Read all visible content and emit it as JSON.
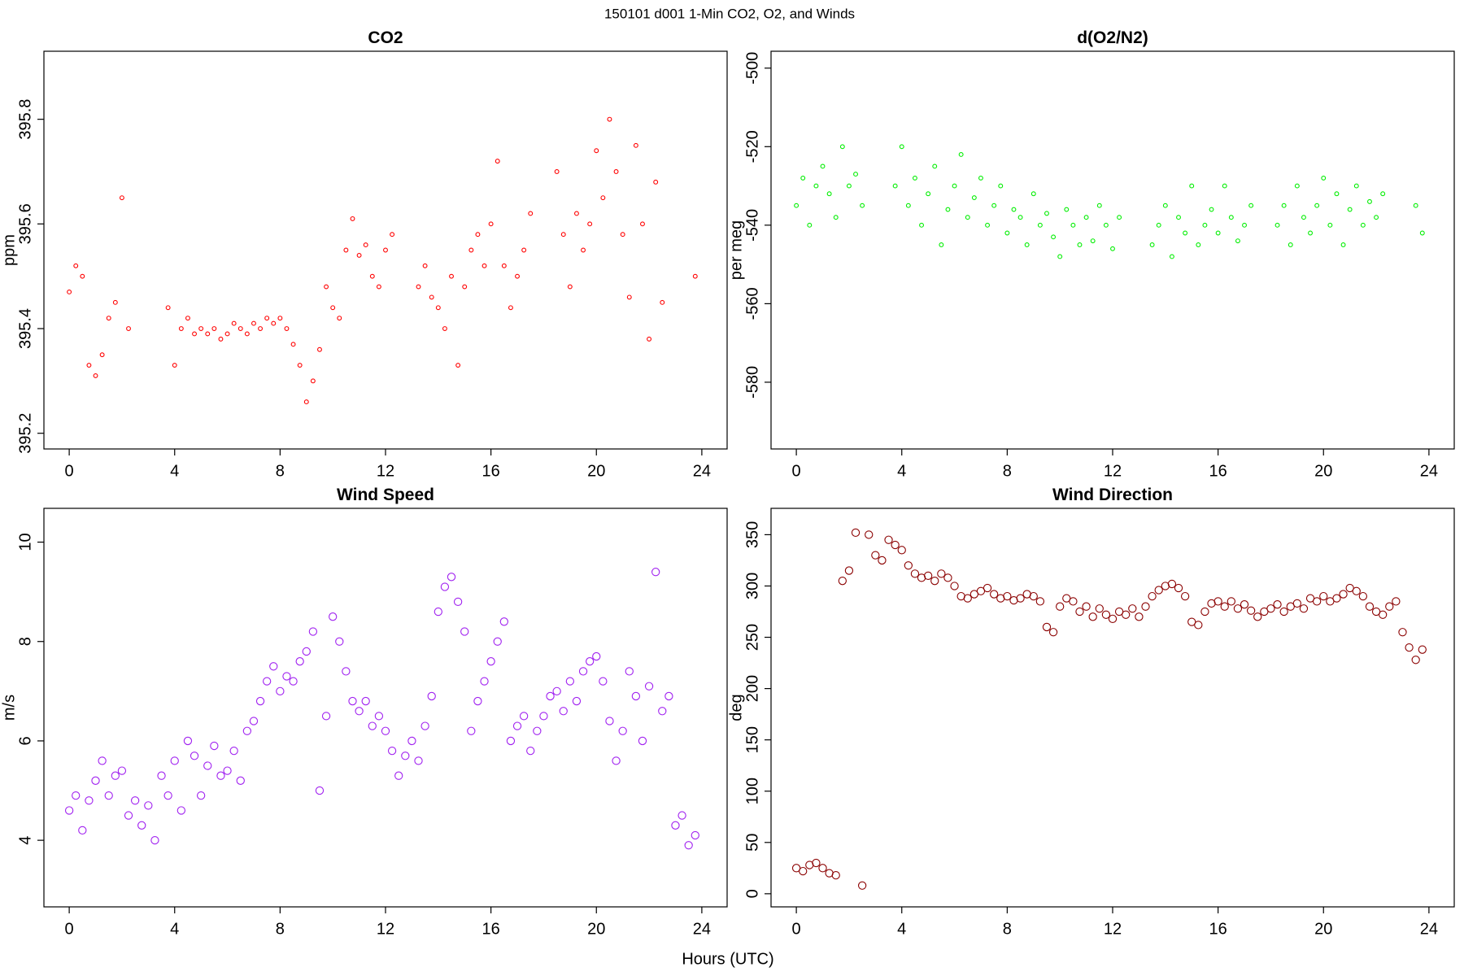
{
  "title": "150101   d001   1-Min CO2, O2, and Winds",
  "xlabel": "Hours (UTC)",
  "chart_data": [
    {
      "type": "scatter",
      "title": "CO2",
      "ylabel": "ppm",
      "color": "#ff0000",
      "xlim": [
        -0.96,
        24.96
      ],
      "xticks": [
        0,
        4,
        8,
        12,
        16,
        20,
        24
      ],
      "ylim": [
        395.17,
        395.93
      ],
      "yticks": [
        395.2,
        395.4,
        395.6,
        395.8
      ],
      "x": [
        0,
        0.25,
        0.5,
        0.75,
        1,
        1.25,
        1.5,
        1.75,
        2,
        2.25,
        2.5,
        2.75,
        3,
        3.25,
        3.5,
        3.75,
        4,
        4.25,
        4.5,
        4.75,
        5,
        5.25,
        5.5,
        5.75,
        6,
        6.25,
        6.5,
        6.75,
        7,
        7.25,
        7.5,
        7.75,
        8,
        8.25,
        8.5,
        8.75,
        9,
        9.25,
        9.5,
        9.75,
        10,
        10.25,
        10.5,
        10.75,
        11,
        11.25,
        11.5,
        11.75,
        12,
        12.25,
        12.5,
        12.75,
        13,
        13.25,
        13.5,
        13.75,
        14,
        14.25,
        14.5,
        14.75,
        15,
        15.25,
        15.5,
        15.75,
        16,
        16.25,
        16.5,
        16.75,
        17,
        17.25,
        17.5,
        17.75,
        18,
        18.25,
        18.5,
        18.75,
        19,
        19.25,
        19.5,
        19.75,
        20,
        20.25,
        20.5,
        20.75,
        21,
        21.25,
        21.5,
        21.75,
        22,
        22.25,
        22.5,
        22.75,
        23,
        23.25,
        23.5,
        23.75
      ],
      "values": [
        395.47,
        395.52,
        395.5,
        395.33,
        395.31,
        395.35,
        395.42,
        395.45,
        395.65,
        395.4,
        null,
        null,
        null,
        null,
        null,
        395.44,
        395.33,
        395.4,
        395.42,
        395.39,
        395.4,
        395.39,
        395.4,
        395.38,
        395.39,
        395.41,
        395.4,
        395.39,
        395.41,
        395.4,
        395.42,
        395.41,
        395.42,
        395.4,
        395.37,
        395.33,
        395.26,
        395.3,
        395.36,
        395.48,
        395.44,
        395.42,
        395.55,
        395.61,
        395.54,
        395.56,
        395.5,
        395.48,
        395.55,
        395.58,
        null,
        null,
        null,
        395.48,
        395.52,
        395.46,
        395.44,
        395.4,
        395.5,
        395.33,
        395.48,
        395.55,
        395.58,
        395.52,
        395.6,
        395.72,
        395.52,
        395.44,
        395.5,
        395.55,
        395.62,
        null,
        null,
        null,
        395.7,
        395.58,
        395.48,
        395.62,
        395.55,
        395.6,
        395.74,
        395.65,
        395.8,
        395.7,
        395.58,
        395.46,
        395.75,
        395.6,
        395.38,
        395.68,
        395.45,
        null,
        null,
        null,
        null,
        395.5
      ]
    },
    {
      "type": "scatter",
      "title": "d(O2/N2)",
      "ylabel": "per meg",
      "color": "#00ee00",
      "xlim": [
        -0.96,
        24.96
      ],
      "xticks": [
        0,
        4,
        8,
        12,
        16,
        20,
        24
      ],
      "ylim": [
        -597,
        -495.7
      ],
      "yticks": [
        -580,
        -560,
        -540,
        -520,
        -500
      ],
      "x": [
        0,
        0.25,
        0.5,
        0.75,
        1,
        1.25,
        1.5,
        1.75,
        2,
        2.25,
        2.5,
        2.75,
        3,
        3.25,
        3.5,
        3.75,
        4,
        4.25,
        4.5,
        4.75,
        5,
        5.25,
        5.5,
        5.75,
        6,
        6.25,
        6.5,
        6.75,
        7,
        7.25,
        7.5,
        7.75,
        8,
        8.25,
        8.5,
        8.75,
        9,
        9.25,
        9.5,
        9.75,
        10,
        10.25,
        10.5,
        10.75,
        11,
        11.25,
        11.5,
        11.75,
        12,
        12.25,
        12.5,
        12.75,
        13,
        13.25,
        13.5,
        13.75,
        14,
        14.25,
        14.5,
        14.75,
        15,
        15.25,
        15.5,
        15.75,
        16,
        16.25,
        16.5,
        16.75,
        17,
        17.25,
        17.5,
        17.75,
        18,
        18.25,
        18.5,
        18.75,
        19,
        19.25,
        19.5,
        19.75,
        20,
        20.25,
        20.5,
        20.75,
        21,
        21.25,
        21.5,
        21.75,
        22,
        22.25,
        22.5,
        22.75,
        23,
        23.25,
        23.5,
        23.75
      ],
      "values": [
        -535,
        -528,
        -540,
        -530,
        -525,
        -532,
        -538,
        -520,
        -530,
        -527,
        -535,
        null,
        null,
        null,
        null,
        -530,
        -520,
        -535,
        -528,
        -540,
        -532,
        -525,
        -545,
        -536,
        -530,
        -522,
        -538,
        -533,
        -528,
        -540,
        -535,
        -530,
        -542,
        -536,
        -538,
        -545,
        -532,
        -540,
        -537,
        -543,
        -548,
        -536,
        -540,
        -545,
        -538,
        -544,
        -535,
        -540,
        -546,
        -538,
        null,
        null,
        null,
        null,
        -545,
        -540,
        -535,
        -548,
        -538,
        -542,
        -530,
        -545,
        -540,
        -536,
        -542,
        -530,
        -538,
        -544,
        -540,
        -535,
        null,
        null,
        null,
        -540,
        -535,
        -545,
        -530,
        -538,
        -542,
        -535,
        -528,
        -540,
        -532,
        -545,
        -536,
        -530,
        -540,
        -534,
        -538,
        -532,
        null,
        null,
        null,
        null,
        -535,
        -542
      ]
    },
    {
      "type": "scatter",
      "title": "Wind Speed",
      "ylabel": "m/s",
      "color": "#a020f0",
      "xlim": [
        -0.96,
        24.96
      ],
      "xticks": [
        0,
        4,
        8,
        12,
        16,
        20,
        24
      ],
      "ylim": [
        2.66,
        10.68
      ],
      "yticks": [
        4,
        6,
        8,
        10
      ],
      "x": [
        0,
        0.25,
        0.5,
        0.75,
        1,
        1.25,
        1.5,
        1.75,
        2,
        2.25,
        2.5,
        2.75,
        3,
        3.25,
        3.5,
        3.75,
        4,
        4.25,
        4.5,
        4.75,
        5,
        5.25,
        5.5,
        5.75,
        6,
        6.25,
        6.5,
        6.75,
        7,
        7.25,
        7.5,
        7.75,
        8,
        8.25,
        8.5,
        8.75,
        9,
        9.25,
        9.5,
        9.75,
        10,
        10.25,
        10.5,
        10.75,
        11,
        11.25,
        11.5,
        11.75,
        12,
        12.25,
        12.5,
        12.75,
        13,
        13.25,
        13.5,
        13.75,
        14,
        14.25,
        14.5,
        14.75,
        15,
        15.25,
        15.5,
        15.75,
        16,
        16.25,
        16.5,
        16.75,
        17,
        17.25,
        17.5,
        17.75,
        18,
        18.25,
        18.5,
        18.75,
        19,
        19.25,
        19.5,
        19.75,
        20,
        20.25,
        20.5,
        20.75,
        21,
        21.25,
        21.5,
        21.75,
        22,
        22.25,
        22.5,
        22.75,
        23,
        23.25,
        23.5,
        23.75
      ],
      "values": [
        4.6,
        4.9,
        4.2,
        4.8,
        5.2,
        5.6,
        4.9,
        5.3,
        5.4,
        4.5,
        4.8,
        4.3,
        4.7,
        4.0,
        5.3,
        4.9,
        5.6,
        4.6,
        6.0,
        5.7,
        4.9,
        5.5,
        5.9,
        5.3,
        5.4,
        5.8,
        5.2,
        6.2,
        6.4,
        6.8,
        7.2,
        7.5,
        7.0,
        7.3,
        7.2,
        7.6,
        7.8,
        8.2,
        5.0,
        6.5,
        8.5,
        8.0,
        7.4,
        6.8,
        6.6,
        6.8,
        6.3,
        6.5,
        6.2,
        5.8,
        5.3,
        5.7,
        6.0,
        5.6,
        6.3,
        6.9,
        8.6,
        9.1,
        9.3,
        8.8,
        8.2,
        6.2,
        6.8,
        7.2,
        7.6,
        8.0,
        8.4,
        6.0,
        6.3,
        6.5,
        5.8,
        6.2,
        6.5,
        6.9,
        7.0,
        6.6,
        7.2,
        6.8,
        7.4,
        7.6,
        7.7,
        7.2,
        6.4,
        5.6,
        6.2,
        7.4,
        6.9,
        6.0,
        7.1,
        9.4,
        6.6,
        6.9,
        4.3,
        4.5,
        3.9,
        4.1
      ]
    },
    {
      "type": "scatter",
      "title": "Wind Direction",
      "ylabel": "deg",
      "color": "#8b0000",
      "xlim": [
        -0.96,
        24.96
      ],
      "xticks": [
        0,
        4,
        8,
        12,
        16,
        20,
        24
      ],
      "ylim": [
        -12.8,
        375.7
      ],
      "yticks": [
        0,
        50,
        100,
        150,
        200,
        250,
        300,
        350
      ],
      "x": [
        0,
        0.25,
        0.5,
        0.75,
        1,
        1.25,
        1.5,
        1.75,
        2,
        2.25,
        2.5,
        2.75,
        3,
        3.25,
        3.5,
        3.75,
        4,
        4.25,
        4.5,
        4.75,
        5,
        5.25,
        5.5,
        5.75,
        6,
        6.25,
        6.5,
        6.75,
        7,
        7.25,
        7.5,
        7.75,
        8,
        8.25,
        8.5,
        8.75,
        9,
        9.25,
        9.5,
        9.75,
        10,
        10.25,
        10.5,
        10.75,
        11,
        11.25,
        11.5,
        11.75,
        12,
        12.25,
        12.5,
        12.75,
        13,
        13.25,
        13.5,
        13.75,
        14,
        14.25,
        14.5,
        14.75,
        15,
        15.25,
        15.5,
        15.75,
        16,
        16.25,
        16.5,
        16.75,
        17,
        17.25,
        17.5,
        17.75,
        18,
        18.25,
        18.5,
        18.75,
        19,
        19.25,
        19.5,
        19.75,
        20,
        20.25,
        20.5,
        20.75,
        21,
        21.25,
        21.5,
        21.75,
        22,
        22.25,
        22.5,
        22.75,
        23,
        23.25,
        23.5,
        23.75
      ],
      "values": [
        25,
        22,
        28,
        30,
        25,
        20,
        18,
        305,
        315,
        352,
        8,
        350,
        330,
        325,
        345,
        340,
        335,
        320,
        312,
        308,
        310,
        305,
        312,
        308,
        300,
        290,
        288,
        292,
        295,
        298,
        292,
        288,
        290,
        286,
        288,
        292,
        290,
        285,
        260,
        255,
        280,
        288,
        285,
        275,
        280,
        270,
        278,
        272,
        268,
        275,
        272,
        278,
        270,
        280,
        290,
        296,
        300,
        302,
        298,
        290,
        265,
        262,
        275,
        283,
        285,
        280,
        285,
        278,
        282,
        276,
        270,
        275,
        278,
        282,
        275,
        280,
        283,
        278,
        288,
        285,
        290,
        285,
        288,
        292,
        298,
        295,
        290,
        280,
        275,
        272,
        280,
        285,
        255,
        240,
        228,
        238
      ]
    }
  ]
}
